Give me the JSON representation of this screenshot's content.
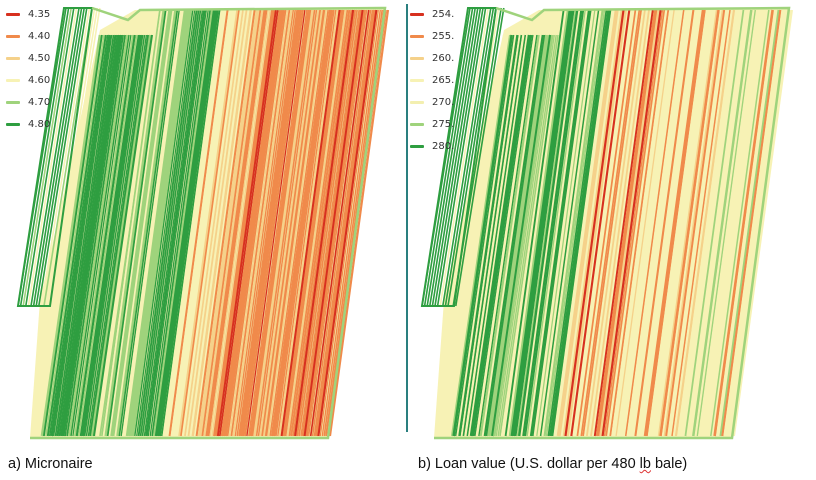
{
  "panels": [
    {
      "id": "micronaire",
      "caption": "a) Micronaire",
      "legend": [
        {
          "label": "4.35",
          "color": "#d7301f"
        },
        {
          "label": "4.40",
          "color": "#f08a4b"
        },
        {
          "label": "4.50",
          "color": "#f5d18a"
        },
        {
          "label": "4.60",
          "color": "#f7f2b5"
        },
        {
          "label": "4.70",
          "color": "#9fd37c"
        },
        {
          "label": "4.80",
          "color": "#2e9e40"
        }
      ],
      "color_trend": "green-west-to-red-east"
    },
    {
      "id": "loan-value",
      "caption_parts": [
        "b) Loan value (U.S. dollar per 480 ",
        "lb",
        " bale)"
      ],
      "legend": [
        {
          "label": "254.",
          "color": "#d7301f"
        },
        {
          "label": "255.",
          "color": "#f08a4b"
        },
        {
          "label": "260.",
          "color": "#f5d18a"
        },
        {
          "label": "265.",
          "color": "#f7f2b5"
        },
        {
          "label": "270.",
          "color": "#f3efb0"
        },
        {
          "label": "275.",
          "color": "#9fd37c"
        },
        {
          "label": "280.",
          "color": "#2e9e40"
        }
      ],
      "color_trend": "green-west-to-yellow-east"
    }
  ]
}
